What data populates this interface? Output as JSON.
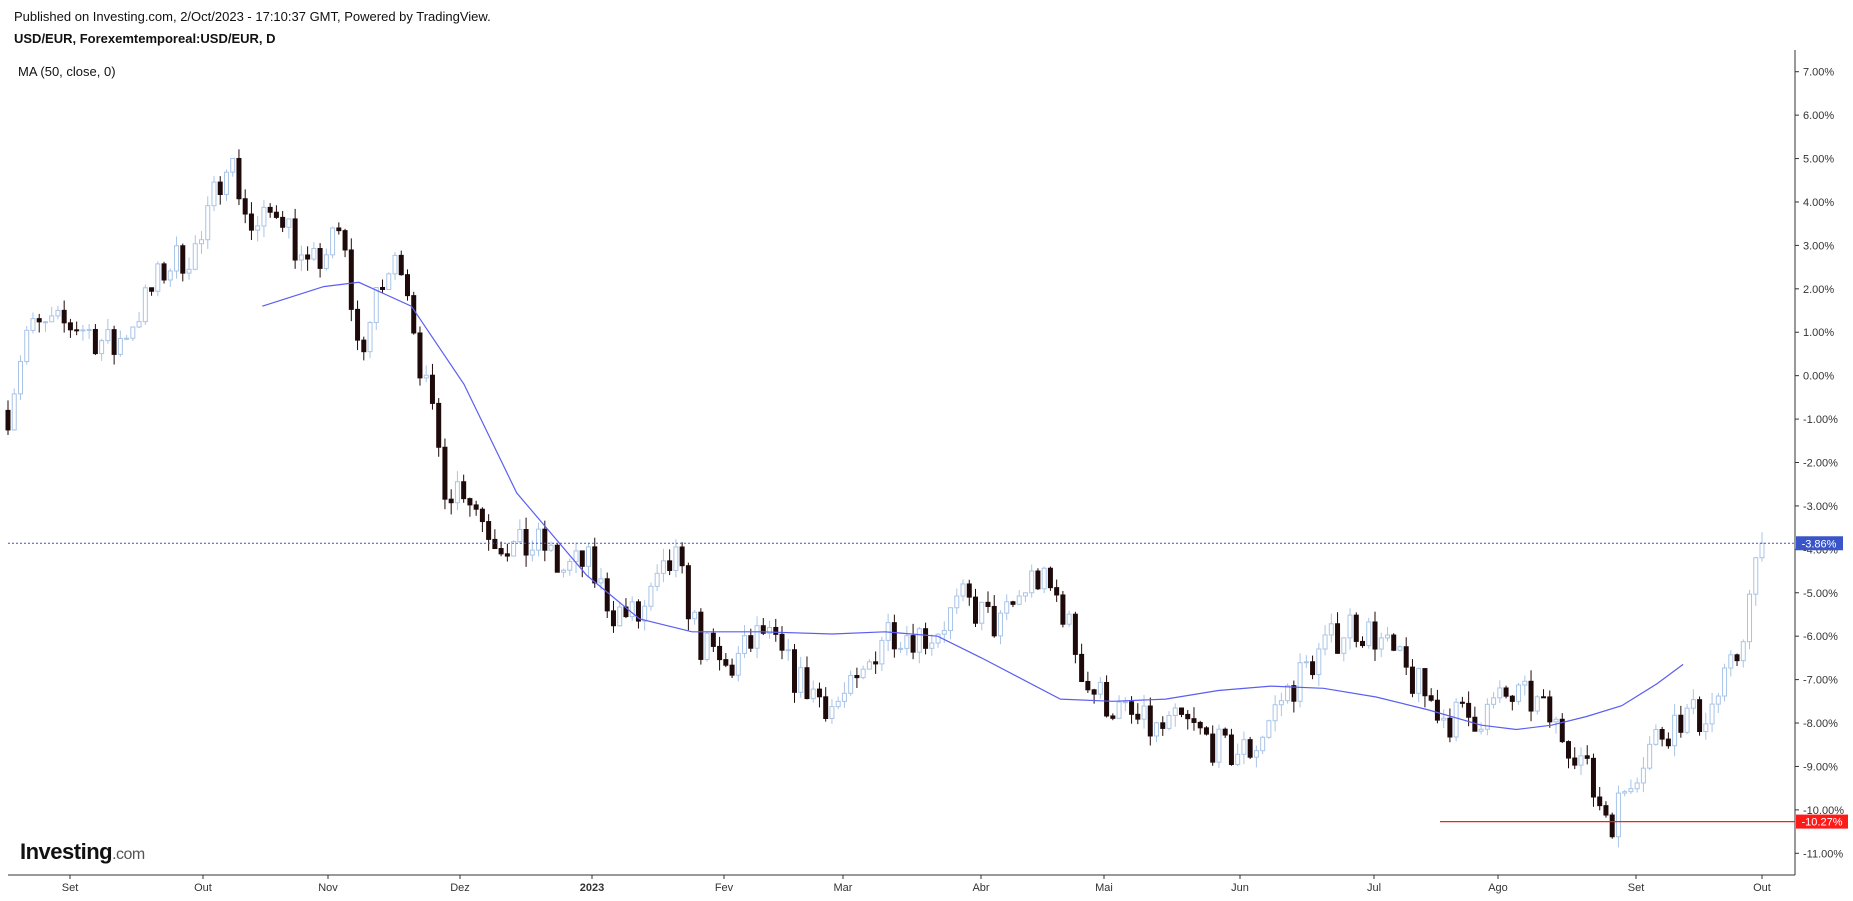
{
  "header": {
    "published": "Published on Investing.com, 2/Oct/2023 - 17:10:37 GMT, Powered by TradingView.",
    "symbol": "USD/EUR, Forexemtemporeal:USD/EUR, D",
    "indicator": "MA (50, close, 0)"
  },
  "logo": {
    "brand": "Investing",
    "domain": ".com"
  },
  "colors": {
    "up": "#a9c4e8",
    "down": "#1e0a0a",
    "ma": "#5b5ef0",
    "last_line": "#3a55c9",
    "low_marker": "#ff1a1a"
  },
  "chart_data": {
    "type": "candlestick",
    "x_axis_labels": [
      "Set",
      "Out",
      "Nov",
      "Dez",
      "2023",
      "Fev",
      "Mar",
      "Abr",
      "Mai",
      "Jun",
      "Jul",
      "Ago",
      "Set",
      "Out"
    ],
    "y_axis_labels": [
      "7.00%",
      "6.00%",
      "5.00%",
      "4.00%",
      "3.00%",
      "2.00%",
      "1.00%",
      "0.00%",
      "-1.00%",
      "-2.00%",
      "-3.00%",
      "-4.00%",
      "-5.00%",
      "-6.00%",
      "-7.00%",
      "-8.00%",
      "-9.00%",
      "-10.00%",
      "-11.00%"
    ],
    "ylim": [
      -11.5,
      7.5
    ],
    "current_value_label": "-3.86%",
    "current_value": -3.86,
    "marked_low_label": "-10.27%",
    "marked_low": -10.27,
    "ma_series": {
      "name": "MA (50, close, 0)",
      "points": [
        [
          0.145,
          1.6
        ],
        [
          0.18,
          2.05
        ],
        [
          0.2,
          2.15
        ],
        [
          0.23,
          1.6
        ],
        [
          0.26,
          -0.2
        ],
        [
          0.29,
          -2.7
        ],
        [
          0.33,
          -4.6
        ],
        [
          0.36,
          -5.6
        ],
        [
          0.39,
          -5.9
        ],
        [
          0.43,
          -5.9
        ],
        [
          0.47,
          -5.95
        ],
        [
          0.5,
          -5.9
        ],
        [
          0.53,
          -6.0
        ],
        [
          0.555,
          -6.5
        ],
        [
          0.6,
          -7.45
        ],
        [
          0.63,
          -7.5
        ],
        [
          0.66,
          -7.45
        ],
        [
          0.69,
          -7.25
        ],
        [
          0.72,
          -7.15
        ],
        [
          0.75,
          -7.2
        ],
        [
          0.78,
          -7.4
        ],
        [
          0.81,
          -7.7
        ],
        [
          0.84,
          -8.05
        ],
        [
          0.86,
          -8.15
        ],
        [
          0.88,
          -8.05
        ],
        [
          0.9,
          -7.85
        ],
        [
          0.92,
          -7.6
        ],
        [
          0.94,
          -7.1
        ],
        [
          0.955,
          -6.65
        ]
      ]
    },
    "anchors": [
      [
        0.0,
        -0.8
      ],
      [
        0.01,
        1.0
      ],
      [
        0.04,
        1.2
      ],
      [
        0.06,
        0.6
      ],
      [
        0.08,
        1.8
      ],
      [
        0.09,
        2.5
      ],
      [
        0.11,
        3.0
      ],
      [
        0.125,
        5.2
      ],
      [
        0.14,
        3.2
      ],
      [
        0.155,
        4.0
      ],
      [
        0.17,
        2.3
      ],
      [
        0.19,
        3.3
      ],
      [
        0.2,
        0.5
      ],
      [
        0.215,
        2.2
      ],
      [
        0.225,
        2.8
      ],
      [
        0.235,
        0.3
      ],
      [
        0.25,
        -2.6
      ],
      [
        0.26,
        -2.5
      ],
      [
        0.275,
        -3.6
      ],
      [
        0.29,
        -4.0
      ],
      [
        0.305,
        -3.9
      ],
      [
        0.315,
        -4.5
      ],
      [
        0.33,
        -4.3
      ],
      [
        0.345,
        -5.4
      ],
      [
        0.36,
        -5.6
      ],
      [
        0.37,
        -4.9
      ],
      [
        0.38,
        -4.2
      ],
      [
        0.395,
        -6.2
      ],
      [
        0.41,
        -6.8
      ],
      [
        0.43,
        -5.9
      ],
      [
        0.45,
        -7.0
      ],
      [
        0.47,
        -7.6
      ],
      [
        0.485,
        -7.2
      ],
      [
        0.5,
        -5.8
      ],
      [
        0.525,
        -6.0
      ],
      [
        0.545,
        -5.2
      ],
      [
        0.565,
        -5.8
      ],
      [
        0.585,
        -4.6
      ],
      [
        0.6,
        -5.2
      ],
      [
        0.615,
        -7.1
      ],
      [
        0.635,
        -7.8
      ],
      [
        0.655,
        -8.2
      ],
      [
        0.67,
        -8.0
      ],
      [
        0.695,
        -8.7
      ],
      [
        0.71,
        -8.6
      ],
      [
        0.725,
        -7.5
      ],
      [
        0.745,
        -6.5
      ],
      [
        0.765,
        -5.7
      ],
      [
        0.78,
        -6.0
      ],
      [
        0.8,
        -7.0
      ],
      [
        0.82,
        -7.9
      ],
      [
        0.84,
        -7.8
      ],
      [
        0.855,
        -7.4
      ],
      [
        0.87,
        -7.5
      ],
      [
        0.885,
        -8.2
      ],
      [
        0.895,
        -8.6
      ],
      [
        0.905,
        -9.7
      ],
      [
        0.915,
        -10.2
      ],
      [
        0.925,
        -9.2
      ],
      [
        0.94,
        -8.3
      ],
      [
        0.955,
        -7.8
      ],
      [
        0.965,
        -7.9
      ],
      [
        0.975,
        -7.4
      ],
      [
        0.985,
        -6.6
      ],
      [
        1.0,
        -3.86
      ]
    ]
  }
}
